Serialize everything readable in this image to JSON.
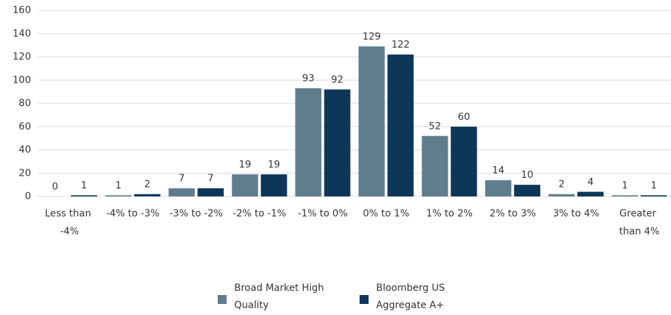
{
  "chart_data": {
    "type": "bar",
    "categories": [
      "Less than -4%",
      "-4% to -3%",
      "-3% to -2%",
      "-2% to -1%",
      "-1% to 0%",
      "0% to 1%",
      "1% to 2%",
      "2% to 3%",
      "3% to 4%",
      "Greater than 4%"
    ],
    "series": [
      {
        "name": "Broad Market High Quality",
        "color": "#5f7d8f",
        "values": [
          0,
          1,
          7,
          19,
          93,
          129,
          52,
          14,
          2,
          1
        ]
      },
      {
        "name": "Bloomberg US Aggregate A+",
        "color": "#0d3658",
        "values": [
          1,
          2,
          7,
          19,
          92,
          122,
          60,
          10,
          4,
          1
        ]
      }
    ],
    "ylim": [
      0,
      160
    ],
    "yticks": [
      0,
      20,
      40,
      60,
      80,
      100,
      120,
      140,
      160
    ],
    "grid": true,
    "legend": "bottom"
  }
}
